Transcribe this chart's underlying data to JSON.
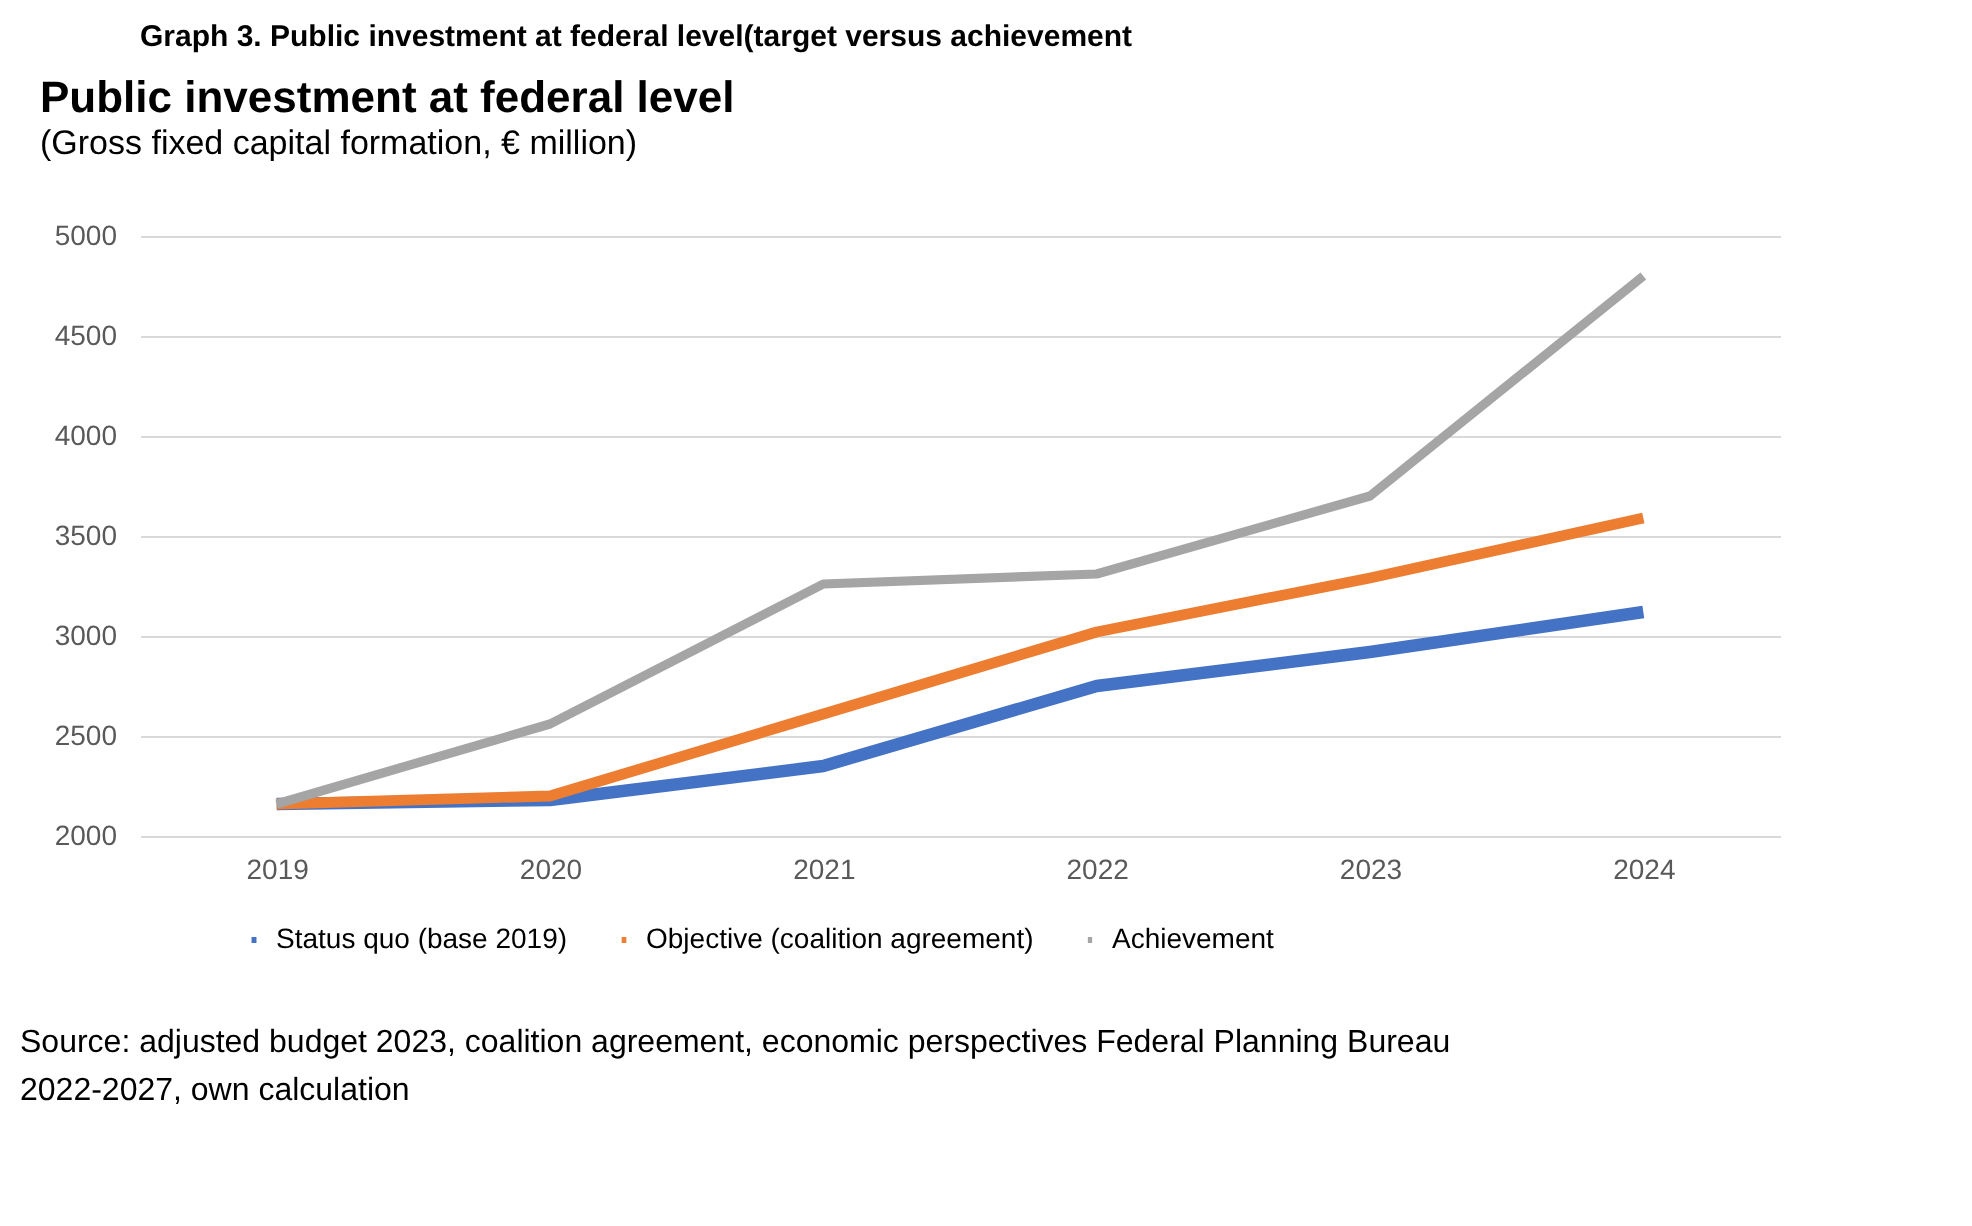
{
  "chart_data": {
    "type": "line",
    "title": "Public investment at federal level",
    "subtitle": "(Gross fixed capital formation, € million)",
    "categories": [
      "2019",
      "2020",
      "2021",
      "2022",
      "2023",
      "2024"
    ],
    "series": [
      {
        "name": "Status quo (base 2019)",
        "color": "#4472c4",
        "values": [
          2160,
          2180,
          2350,
          2750,
          2920,
          3120
        ]
      },
      {
        "name": "Objective (coalition agreement)",
        "color": "#ed7d31",
        "values": [
          2160,
          2200,
          2610,
          3020,
          3290,
          3590
        ]
      },
      {
        "name": "Achievement",
        "color": "#a5a5a5",
        "values": [
          2160,
          2560,
          3260,
          3310,
          3700,
          4800
        ]
      }
    ],
    "ylim": [
      2000,
      5000
    ],
    "yticks": [
      2000,
      2500,
      3000,
      3500,
      4000,
      4500,
      5000
    ],
    "grid": "y",
    "legend": "bottom",
    "marker": "none",
    "line_style": "solid",
    "annotations": [
      "Graph 3. Public investment at federal level(target versus achievement",
      "Source: adjusted budget 2023, coalition agreement, economic perspectives Federal Planning Bureau 2022-2027, own calculation"
    ]
  }
}
